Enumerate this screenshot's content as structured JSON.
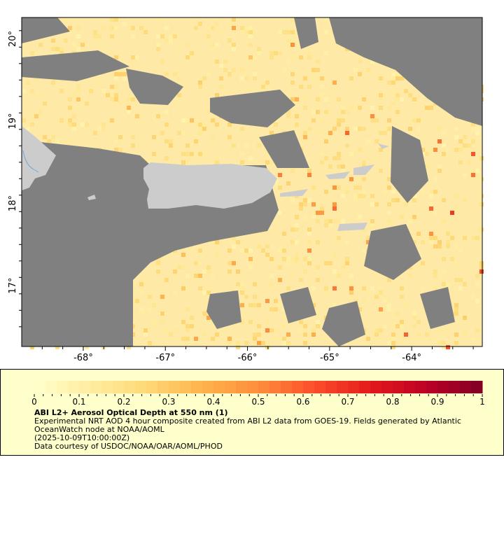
{
  "map": {
    "lon_range": [
      -68.75,
      -63.14
    ],
    "lat_range": [
      16.26,
      20.26
    ],
    "lon_ticks": [
      {
        "value": -68,
        "label": "-68°"
      },
      {
        "value": -67,
        "label": "-67°"
      },
      {
        "value": -66,
        "label": "-66°"
      },
      {
        "value": -65,
        "label": "-65°"
      },
      {
        "value": -64,
        "label": "-64°"
      }
    ],
    "lat_ticks": [
      {
        "value": 20,
        "label": "20°"
      },
      {
        "value": 19,
        "label": "19°"
      },
      {
        "value": 18,
        "label": "18°"
      },
      {
        "value": 17,
        "label": "17°"
      }
    ],
    "colors": {
      "no_data": "#808080",
      "land": "#cccccc",
      "background_data": "#feeaa6",
      "river": "#6fa8dc"
    }
  },
  "legend": {
    "range": [
      0,
      1
    ],
    "tick_labels": [
      "0",
      "0.1",
      "0.2",
      "0.3",
      "0.4",
      "0.5",
      "0.6",
      "0.7",
      "0.8",
      "0.9",
      "1"
    ],
    "palette": [
      "#ffffcc",
      "#ffeda0",
      "#fed976",
      "#feb24c",
      "#fd8d3c",
      "#fc4e2a",
      "#e31a1c",
      "#bd0026",
      "#800026"
    ],
    "title": "ABI L2+ Aerosol Optical Depth at 550 nm (1)",
    "description_line1": "Experimental NRT AOD 4 hour composite created from ABI L2 data from GOES-19. Fields generated by Atlantic",
    "description_line2": "OceanWatch node at NOAA/AOML",
    "time": "(2025-10-09T10:00:00Z)",
    "credit": "Data courtesy of USDOC/NOAA/OAR/AOML/PHOD"
  }
}
